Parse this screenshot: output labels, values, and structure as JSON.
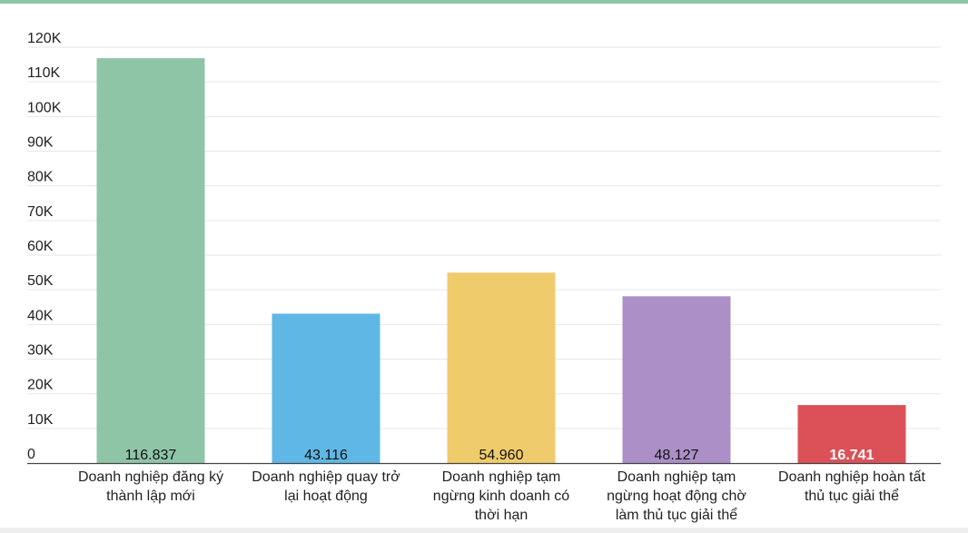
{
  "colors": {
    "accent": "#8ec5a6",
    "grid": "#e6e6e6",
    "axis": "#444444"
  },
  "chart_data": {
    "type": "bar",
    "categories": [
      [
        "Doanh nghiệp đăng ký",
        "thành lập mới"
      ],
      [
        "Doanh nghiệp quay trở",
        "lại hoạt động"
      ],
      [
        "Doanh nghiệp tạm",
        "ngừng kinh doanh có",
        "thời hạn"
      ],
      [
        "Doanh nghiệp tạm",
        "ngừng hoạt động chờ",
        "làm thủ tục giải thể"
      ],
      [
        "Doanh nghiệp hoàn tất",
        "thủ tục giải thể"
      ]
    ],
    "values": [
      116837,
      43116,
      54960,
      48127,
      16741
    ],
    "value_labels": [
      "116.837",
      "43.116",
      "54.960",
      "48.127",
      "16.741"
    ],
    "bar_colors": [
      "#8ec5a6",
      "#5fb7e5",
      "#efcb6b",
      "#ab8fc6",
      "#dc5158"
    ],
    "value_label_colors": [
      "#111111",
      "#111111",
      "#111111",
      "#111111",
      "#ffffff"
    ],
    "ylim": [
      0,
      120000
    ],
    "yticks": [
      0,
      10000,
      20000,
      30000,
      40000,
      50000,
      60000,
      70000,
      80000,
      90000,
      100000,
      110000,
      120000
    ],
    "ytick_labels": [
      "0",
      "10K",
      "20K",
      "30K",
      "40K",
      "50K",
      "60K",
      "70K",
      "80K",
      "90K",
      "100K",
      "110K",
      "120K"
    ],
    "grid": true,
    "title": "",
    "xlabel": "",
    "ylabel": ""
  }
}
